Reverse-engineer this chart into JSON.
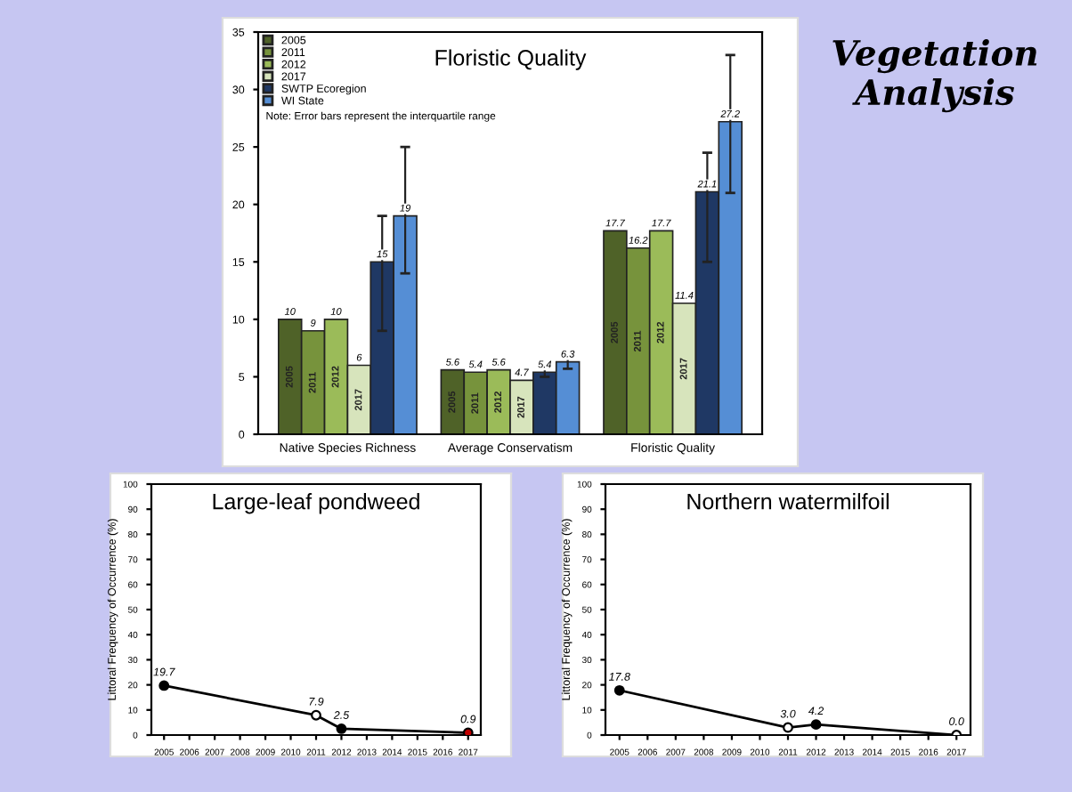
{
  "chart_data": [
    {
      "type": "bar",
      "title": "Floristic Quality",
      "categories": [
        "Native Species Richness",
        "Average Conservatism",
        "Floristic Quality"
      ],
      "series": [
        {
          "name": "2005",
          "color": "#4f6228",
          "values": [
            10,
            5.6,
            17.7
          ],
          "value_labels": [
            "10",
            "5.6",
            "17.7"
          ]
        },
        {
          "name": "2011",
          "color": "#77933c",
          "values": [
            9,
            5.4,
            16.2
          ],
          "value_labels": [
            "9",
            "5.4",
            "16.2"
          ]
        },
        {
          "name": "2012",
          "color": "#9bbb59",
          "values": [
            10,
            5.6,
            17.7
          ],
          "value_labels": [
            "10",
            "5.6",
            "17.7"
          ]
        },
        {
          "name": "2017",
          "color": "#d7e4bc",
          "values": [
            6,
            4.7,
            11.4
          ],
          "value_labels": [
            "6",
            "4.7",
            "11.4"
          ]
        },
        {
          "name": "SWTP Ecoregion",
          "color": "#1f3864",
          "values": [
            15,
            5.4,
            21.1
          ],
          "value_labels": [
            "15",
            "5.4",
            "21.1"
          ],
          "errors": [
            [
              9,
              19
            ],
            [
              5.0,
              5.8
            ],
            [
              15,
              24.5
            ]
          ]
        },
        {
          "name": "WI State",
          "color": "#558ed5",
          "values": [
            19,
            6.3,
            27.2
          ],
          "value_labels": [
            "19",
            "6.3",
            "27.2"
          ],
          "errors": [
            [
              14,
              25
            ],
            [
              5.7,
              7.0
            ],
            [
              21,
              33
            ]
          ]
        }
      ],
      "ylim": [
        0,
        35
      ],
      "yticks": [
        0,
        5,
        10,
        15,
        20,
        25,
        30,
        35
      ],
      "grid": false,
      "legend": "top left",
      "annotations": [
        "Note: Error bars represent the interquartile range"
      ]
    },
    {
      "type": "line",
      "title": "Large-leaf pondweed",
      "ylabel": "Littoral Frequency of Occurrence (%)",
      "x": [
        2005,
        2011,
        2012,
        2017
      ],
      "series": [
        {
          "color": "#000000",
          "colors": [
            "#000000",
            "#ffffff",
            "#000000",
            "#c00000"
          ],
          "values": [
            19.7,
            7.9,
            2.5,
            0.9
          ],
          "value_labels": [
            "19.7",
            "7.9",
            "2.5",
            "0.9"
          ]
        }
      ],
      "xlim": [
        2004.5,
        2017.5
      ],
      "xticks": [
        2005,
        2006,
        2007,
        2008,
        2009,
        2010,
        2011,
        2012,
        2013,
        2014,
        2015,
        2016,
        2017
      ],
      "ylim": [
        0,
        100
      ],
      "yticks": [
        0,
        10,
        20,
        30,
        40,
        50,
        60,
        70,
        80,
        90,
        100
      ],
      "marker": "circle",
      "line_style": "solid",
      "grid": false
    },
    {
      "type": "line",
      "title": "Northern watermilfoil",
      "ylabel": "Littoral Frequency of Occurrence (%)",
      "x": [
        2005,
        2011,
        2012,
        2017
      ],
      "series": [
        {
          "color": "#000000",
          "colors": [
            "#000000",
            "#ffffff",
            "#000000",
            "#ffffff"
          ],
          "values": [
            17.8,
            3.0,
            4.2,
            0.0
          ],
          "value_labels": [
            "17.8",
            "3.0",
            "4.2",
            "0.0"
          ]
        }
      ],
      "xlim": [
        2004.5,
        2017.5
      ],
      "xticks": [
        2005,
        2006,
        2007,
        2008,
        2009,
        2010,
        2011,
        2012,
        2013,
        2014,
        2015,
        2016,
        2017
      ],
      "ylim": [
        0,
        100
      ],
      "yticks": [
        0,
        10,
        20,
        30,
        40,
        50,
        60,
        70,
        80,
        90,
        100
      ],
      "marker": "circle",
      "line_style": "solid",
      "grid": false
    },
    {
      "type": "other",
      "title": "Vegetation Analysis"
    }
  ]
}
